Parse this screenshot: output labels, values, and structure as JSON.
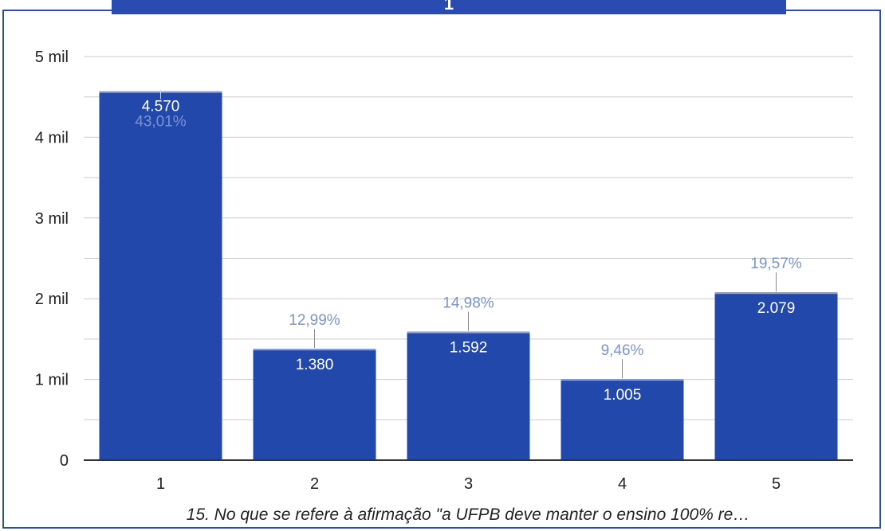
{
  "chart_data": {
    "type": "bar",
    "title": "1",
    "categories": [
      "1",
      "2",
      "3",
      "4",
      "5"
    ],
    "values": [
      4570,
      1380,
      1592,
      1005,
      2079
    ],
    "value_labels": [
      "4.570",
      "1.380",
      "1.592",
      "1.005",
      "2.079"
    ],
    "percent_labels": [
      "43,01%",
      "12,99%",
      "14,98%",
      "9,46%",
      "19,57%"
    ],
    "ylim": [
      0,
      5000
    ],
    "yticks": [
      0,
      1000,
      2000,
      3000,
      4000,
      5000
    ],
    "ytick_labels": [
      "0",
      "1 mil",
      "2 mil",
      "3 mil",
      "4 mil",
      "5 mil"
    ],
    "xlabel": "15. No que se refere à afirmação \"a UFPB deve manter o ensino 100% re…",
    "grid": true,
    "legend": "none",
    "colors": {
      "bar": "#2348ab",
      "bar_top": "#8fa3d8",
      "percent_text": "#7c93cf",
      "grid": "#cccccc",
      "axis": "#333333",
      "frame": "#2b4fa8"
    }
  }
}
